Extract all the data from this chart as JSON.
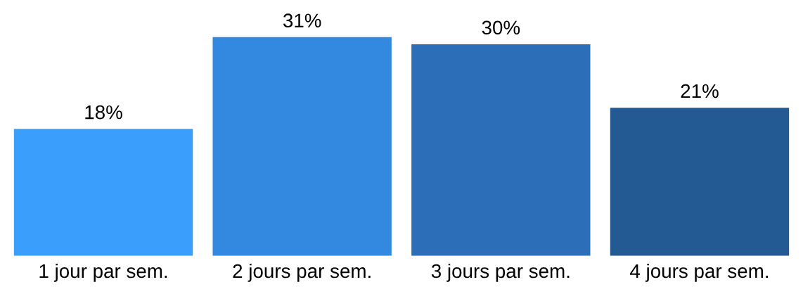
{
  "chart_data": {
    "type": "bar",
    "categories": [
      "1 jour par sem.",
      "2 jours par sem.",
      "3 jours par sem.",
      "4 jours par sem."
    ],
    "values": [
      18,
      31,
      30,
      21
    ],
    "colors": [
      "#3a9efd",
      "#3388e0",
      "#2c6fb8",
      "#235a94"
    ],
    "value_labels": [
      "18%",
      "31%",
      "30%",
      "21%"
    ],
    "grid": false,
    "legend": false
  }
}
